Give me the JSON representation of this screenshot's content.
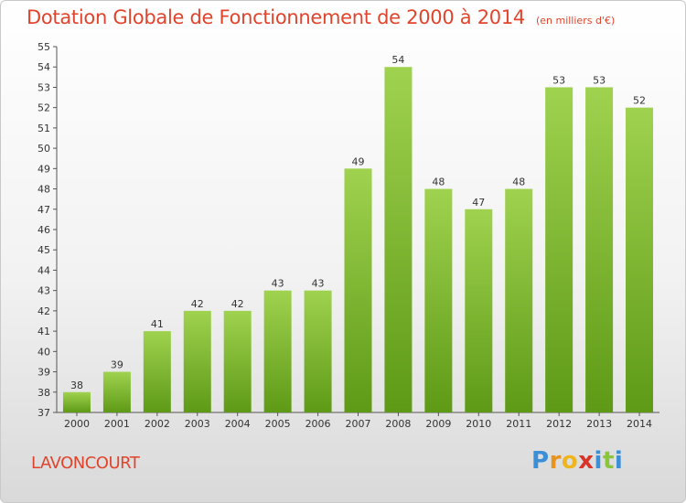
{
  "header": {
    "title": "Dotation Globale de Fonctionnement de 2000 à 2014",
    "subtitle": "(en milliers d'€)"
  },
  "footer": {
    "commune": "LAVONCOURT",
    "logo_letters": [
      {
        "char": "P",
        "color": "#3a8fd6"
      },
      {
        "char": "r",
        "color": "#e8931d"
      },
      {
        "char": "o",
        "color": "#f0b51d"
      },
      {
        "char": "x",
        "color": "#d9332a"
      },
      {
        "char": "i",
        "color": "#3a8fd6"
      },
      {
        "char": "t",
        "color": "#8bc43f"
      },
      {
        "char": "i",
        "color": "#3a8fd6"
      }
    ]
  },
  "chart_data": {
    "type": "bar",
    "categories": [
      "2000",
      "2001",
      "2002",
      "2003",
      "2004",
      "2005",
      "2006",
      "2007",
      "2008",
      "2009",
      "2010",
      "2011",
      "2012",
      "2013",
      "2014"
    ],
    "values": [
      38,
      39,
      41,
      42,
      42,
      43,
      43,
      49,
      54,
      48,
      47,
      48,
      53,
      53,
      52
    ],
    "ylim": [
      37,
      55
    ],
    "yticks": [
      37,
      38,
      39,
      40,
      41,
      42,
      43,
      44,
      45,
      46,
      47,
      48,
      49,
      50,
      51,
      52,
      53,
      54,
      55
    ],
    "bar_color_light": "#9fd24f",
    "bar_color_dark": "#5e9a16",
    "grid": false
  }
}
